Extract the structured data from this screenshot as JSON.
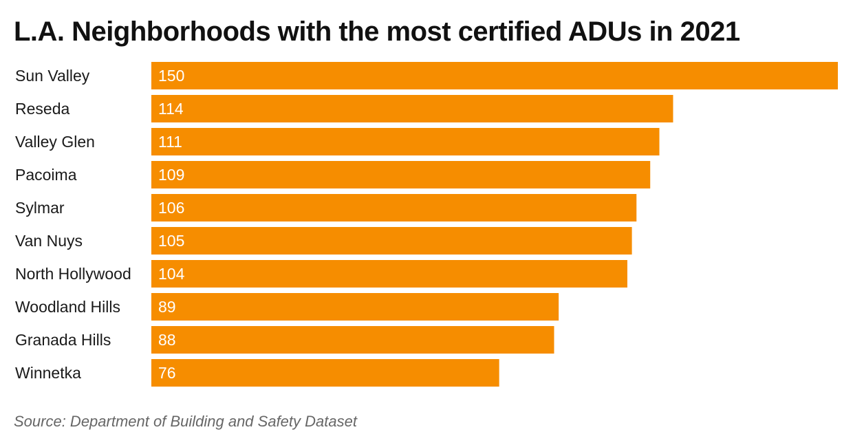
{
  "chart_data": {
    "type": "bar",
    "orientation": "horizontal",
    "title": "L.A. Neighborhoods with the most certified ADUs in 2021",
    "categories": [
      "Sun Valley",
      "Reseda",
      "Valley Glen",
      "Pacoima",
      "Sylmar",
      "Van Nuys",
      "North Hollywood",
      "Woodland Hills",
      "Granada Hills",
      "Winnetka"
    ],
    "values": [
      150,
      114,
      111,
      109,
      106,
      105,
      104,
      89,
      88,
      76
    ],
    "xlim": [
      0,
      150
    ],
    "grid": false,
    "legend": "none",
    "bar_color": "#F68D00",
    "source": "Source: Department of Building and Safety Dataset"
  }
}
